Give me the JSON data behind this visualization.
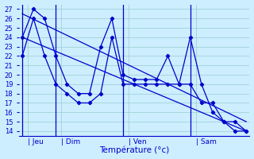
{
  "xlabel": "Température (°c)",
  "bg_color": "#cceeff",
  "line_color": "#0000cc",
  "grid_color": "#99cccc",
  "ylim": [
    13.5,
    27.5
  ],
  "yticks": [
    14,
    15,
    16,
    17,
    18,
    19,
    20,
    21,
    22,
    23,
    24,
    25,
    26,
    27
  ],
  "xlim": [
    -0.3,
    20.3
  ],
  "day_labels": [
    "| Jeu",
    "| Dim",
    "| Ven",
    "| Sam"
  ],
  "day_positions": [
    0.5,
    3.5,
    9.5,
    15.5
  ],
  "day_vlines": [
    0,
    3,
    9,
    15
  ],
  "x_total": 20,
  "series_max": {
    "x": [
      0,
      1,
      2,
      3,
      4,
      5,
      6,
      7,
      8,
      9,
      10,
      11,
      12,
      13,
      14,
      15,
      16,
      17,
      18,
      19,
      20
    ],
    "y": [
      24,
      27,
      26,
      22,
      19,
      18,
      18,
      23,
      26,
      20,
      19.5,
      19.5,
      19.5,
      22,
      19,
      19,
      17,
      17,
      15,
      15,
      14
    ]
  },
  "series_min": {
    "x": [
      0,
      1,
      2,
      3,
      4,
      5,
      6,
      7,
      8,
      9,
      10,
      11,
      12,
      13,
      14,
      15,
      16,
      17,
      18,
      19,
      20
    ],
    "y": [
      22,
      26,
      22,
      19,
      18,
      17,
      17,
      18,
      24,
      19,
      19,
      19,
      19,
      19,
      19,
      24,
      19,
      16,
      15,
      14,
      14
    ]
  },
  "series_trend1": {
    "x": [
      0,
      20
    ],
    "y": [
      26.5,
      15
    ]
  },
  "series_trend2": {
    "x": [
      0,
      20
    ],
    "y": [
      24,
      14
    ]
  }
}
